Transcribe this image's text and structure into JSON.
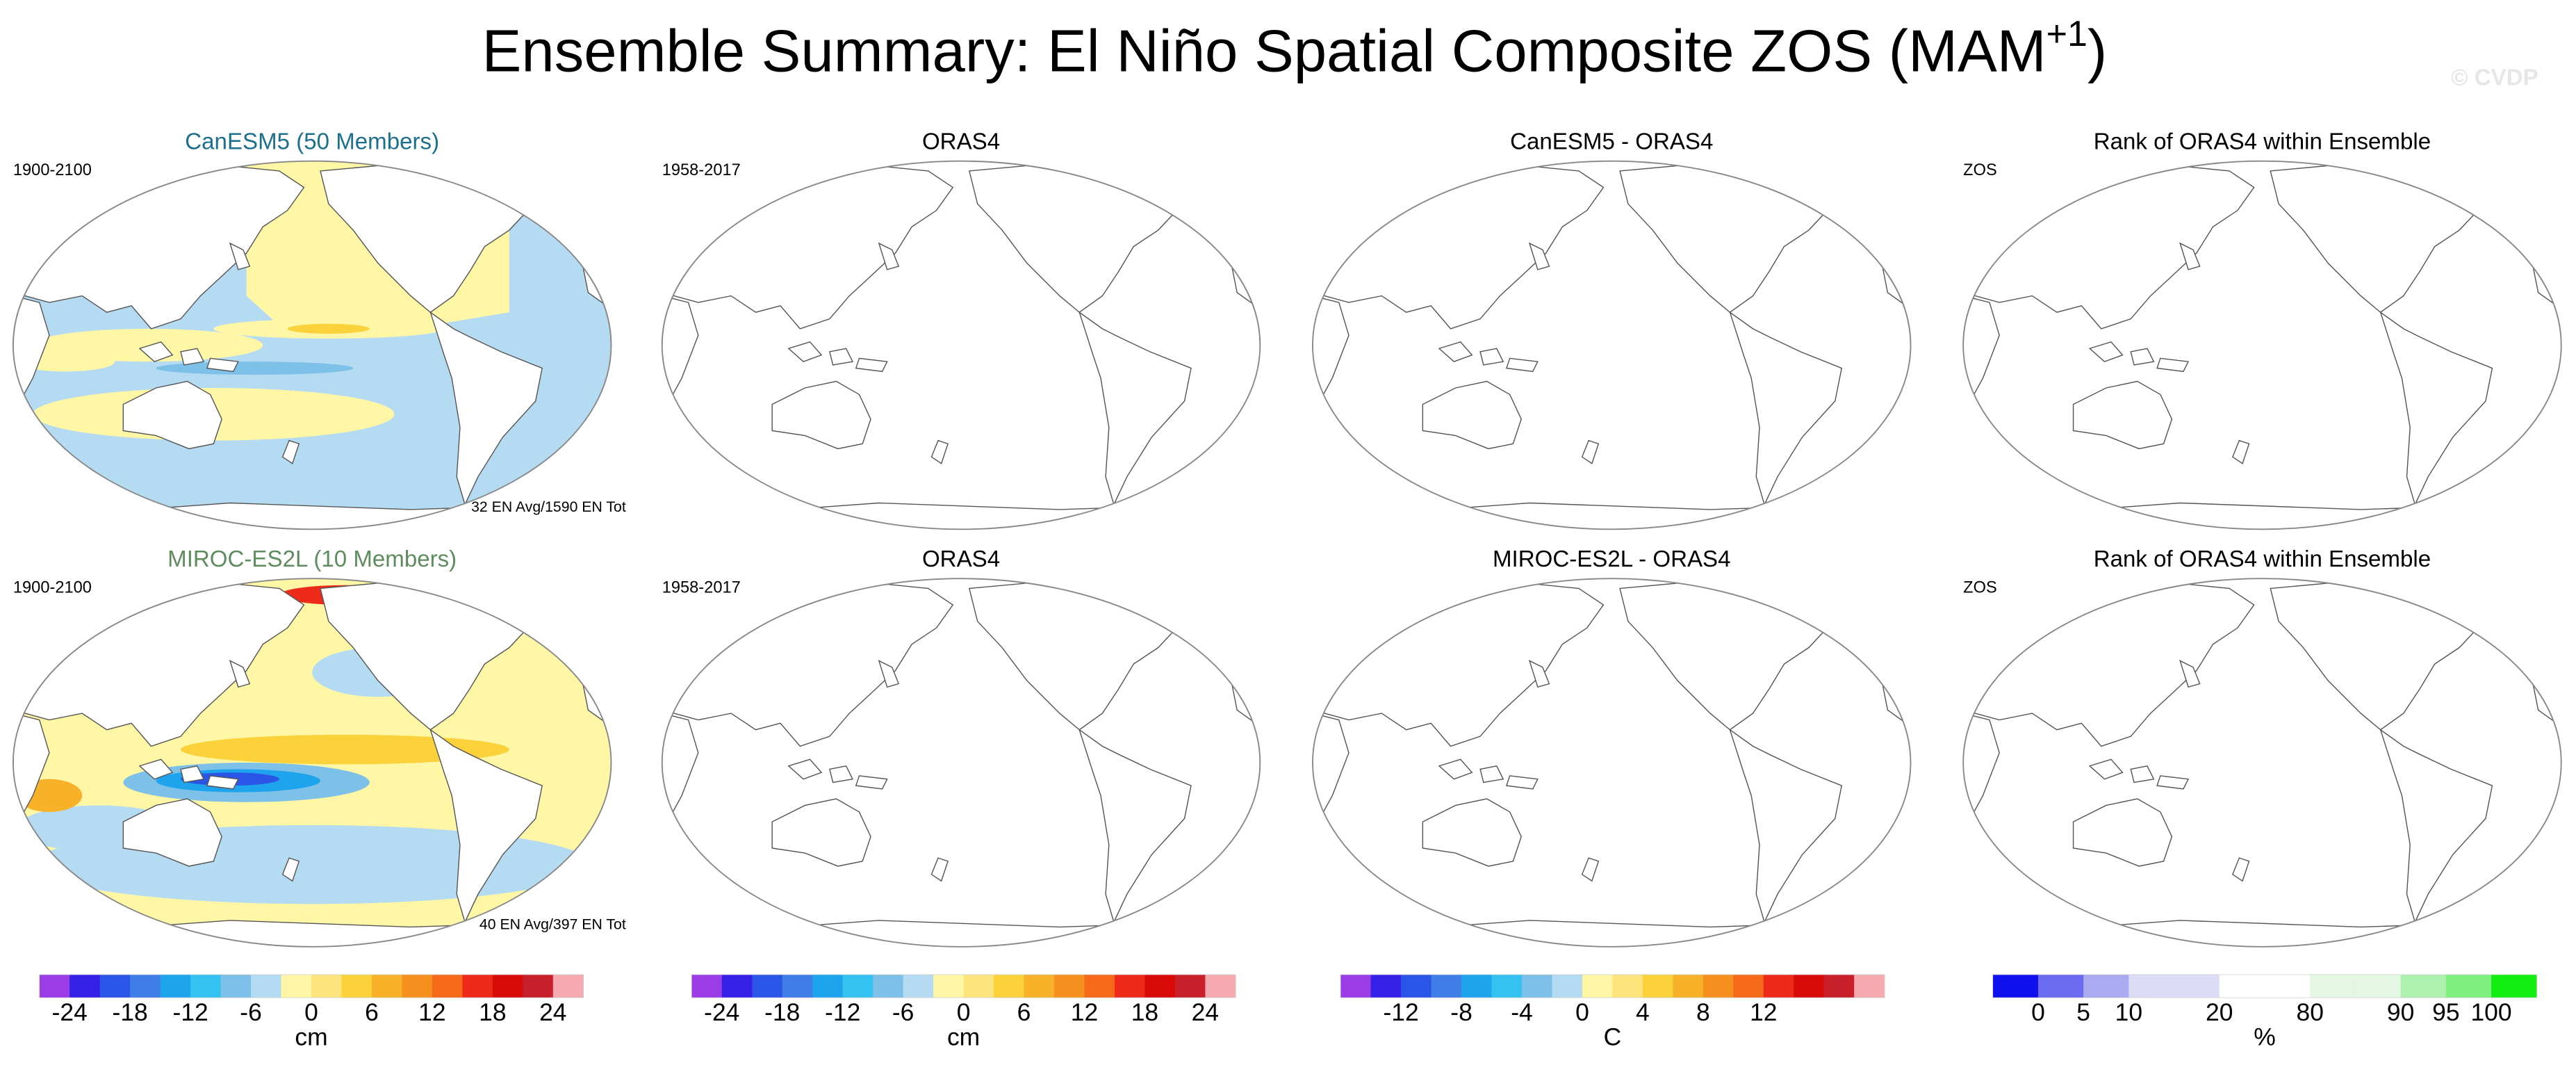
{
  "header": {
    "title": "Ensemble Summary: El Niño Spatial Composite ZOS (MAM",
    "title_sup": "+1",
    "title_end": ")",
    "watermark": "© CVDP"
  },
  "rows": [
    {
      "panels": [
        {
          "title": "CanESM5 (50 Members)",
          "title_color": "#1d6f8e",
          "left_label": "1900-2100",
          "right_label": "32 EN Avg/1590 EN Tot"
        },
        {
          "title": "ORAS4",
          "left_label": "1958-2017"
        },
        {
          "title": "CanESM5 - ORAS4"
        },
        {
          "title": "Rank of ORAS4 within Ensemble",
          "left_label": "ZOS"
        }
      ]
    },
    {
      "panels": [
        {
          "title": "MIROC-ES2L (10 Members)",
          "title_color": "#5e8c5e",
          "left_label": "1900-2100",
          "right_label": "40 EN Avg/397 EN Tot"
        },
        {
          "title": "ORAS4",
          "left_label": "1958-2017"
        },
        {
          "title": "MIROC-ES2L - ORAS4"
        },
        {
          "title": "Rank of ORAS4 within Ensemble",
          "left_label": "ZOS"
        }
      ]
    }
  ],
  "colorbars": [
    {
      "ticks": [
        -24,
        -18,
        -12,
        -6,
        0,
        6,
        12,
        18,
        24
      ],
      "unit": "cm",
      "colors": [
        "#9b3de6",
        "#3420e6",
        "#2b55e6",
        "#3f7ee6",
        "#1ea4ec",
        "#34c3f0",
        "#7dc0e8",
        "#b5dbf2",
        "#fff6a6",
        "#fde47c",
        "#fbd23a",
        "#f8b22a",
        "#f58f1e",
        "#f56a1a",
        "#ee2a1a",
        "#d80a0a",
        "#c8202a",
        "#f6aab0"
      ]
    },
    {
      "ticks": [
        -24,
        -18,
        -12,
        -6,
        0,
        6,
        12,
        18,
        24
      ],
      "unit": "cm",
      "colors": [
        "#9b3de6",
        "#3420e6",
        "#2b55e6",
        "#3f7ee6",
        "#1ea4ec",
        "#34c3f0",
        "#7dc0e8",
        "#b5dbf2",
        "#fff6a6",
        "#fde47c",
        "#fbd23a",
        "#f8b22a",
        "#f58f1e",
        "#f56a1a",
        "#ee2a1a",
        "#d80a0a",
        "#c8202a",
        "#f6aab0"
      ]
    },
    {
      "ticks": [
        -12,
        -8,
        -4,
        0,
        4,
        8,
        12
      ],
      "unit": "C",
      "colors": [
        "#9b3de6",
        "#3420e6",
        "#2b55e6",
        "#3f7ee6",
        "#1ea4ec",
        "#34c3f0",
        "#7dc0e8",
        "#b5dbf2",
        "#fff6a6",
        "#fde47c",
        "#fbd23a",
        "#f8b22a",
        "#f58f1e",
        "#f56a1a",
        "#ee2a1a",
        "#d80a0a",
        "#c8202a",
        "#f6aab0"
      ]
    },
    {
      "ticks": [
        0,
        5,
        10,
        20,
        80,
        90,
        95,
        100
      ],
      "unit": "%",
      "colors": [
        "#1010ee",
        "#6b6bef",
        "#aaaaf0",
        "#dcdcf6",
        "#dcdcf6",
        "#ffffff",
        "#ffffff",
        "#e3f7e3",
        "#e3f7e3",
        "#aef0ae",
        "#7fef7f",
        "#12ee12"
      ]
    }
  ]
}
